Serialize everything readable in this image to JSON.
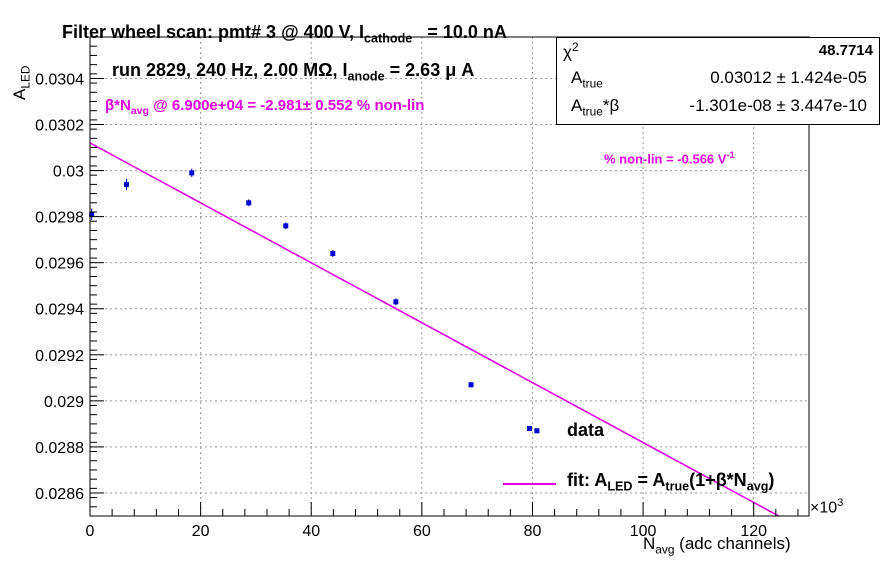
{
  "title": {
    "main": "Filter wheel scan: pmt#   3 @   400 V, I",
    "sub": "cathode",
    "tail": "= 10.0 nA"
  },
  "run_info": {
    "main": "run 2829, 240 Hz, 2.00 MΩ, I",
    "sub": "anode",
    "tail": "= 2.63 μ A"
  },
  "beta_annotation": {
    "pre": "β*N",
    "sub": "avg",
    "post": " @ 6.900e+04 = -2.981± 0.552 % non-lin"
  },
  "nonlin_annotation": {
    "main": "% non-lin = -0.566 V",
    "sup": "-1"
  },
  "stats_box": {
    "chi2_label": "χ",
    "chi2_sup": "2",
    "chi2_value": "48.7714",
    "atrue_label": "A",
    "atrue_sub": "true",
    "atrue_value": "0.03012 ± 1.424e-05",
    "atruebeta_label": "A",
    "atruebeta_sub": "true",
    "atruebeta_suffix": "*β",
    "atruebeta_value": "-1.301e-08 ± 3.447e-10"
  },
  "legend": {
    "data_label": "data",
    "fit_main": "fit: A",
    "fit_sub1": "LED",
    "fit_mid": " = A",
    "fit_sub2": "true",
    "fit_mid2": "(1+β*N",
    "fit_sub3": "avg",
    "fit_end": ")"
  },
  "chart_data": {
    "type": "scatter",
    "x_multiplier_label": "×10",
    "x_multiplier_sup": "3",
    "xlabel_main": "N",
    "xlabel_sub": "avg",
    "xlabel_tail": " (adc channels)",
    "ylabel_main": "A",
    "ylabel_sub": "LED",
    "xlim": [
      0,
      130
    ],
    "ylim": [
      0.0285,
      0.03058
    ],
    "x_ticks": [
      0,
      20,
      40,
      60,
      80,
      100,
      120
    ],
    "y_ticks": [
      0.0286,
      0.0288,
      0.029,
      0.0292,
      0.0294,
      0.0296,
      0.0298,
      0.03,
      0.0302,
      0.0304
    ],
    "y_tick_labels": [
      "0.0286",
      "0.0288",
      "0.029",
      "0.0292",
      "0.0294",
      "0.0296",
      "0.0298",
      "0.03",
      "0.0302",
      "0.0304"
    ],
    "grid": true,
    "series": [
      {
        "x": [
          0.3,
          6.6,
          18.4,
          28.7,
          35.4,
          43.9,
          55.3,
          68.9,
          80.8
        ],
        "y": [
          0.02981,
          0.02994,
          0.02999,
          0.02986,
          0.02976,
          0.02964,
          0.02943,
          0.02907,
          0.02887
        ],
        "err": [
          2.5e-05,
          2.5e-05,
          1.8e-05,
          1.5e-05,
          1.5e-05,
          1.5e-05,
          1.5e-05,
          1.2e-05,
          8e-06
        ],
        "color": "#0000cc"
      }
    ],
    "fit": {
      "a_true": 0.03012,
      "a_true_beta": -1.301e-08,
      "x_scale": 1000,
      "color": "#e100e1"
    }
  }
}
